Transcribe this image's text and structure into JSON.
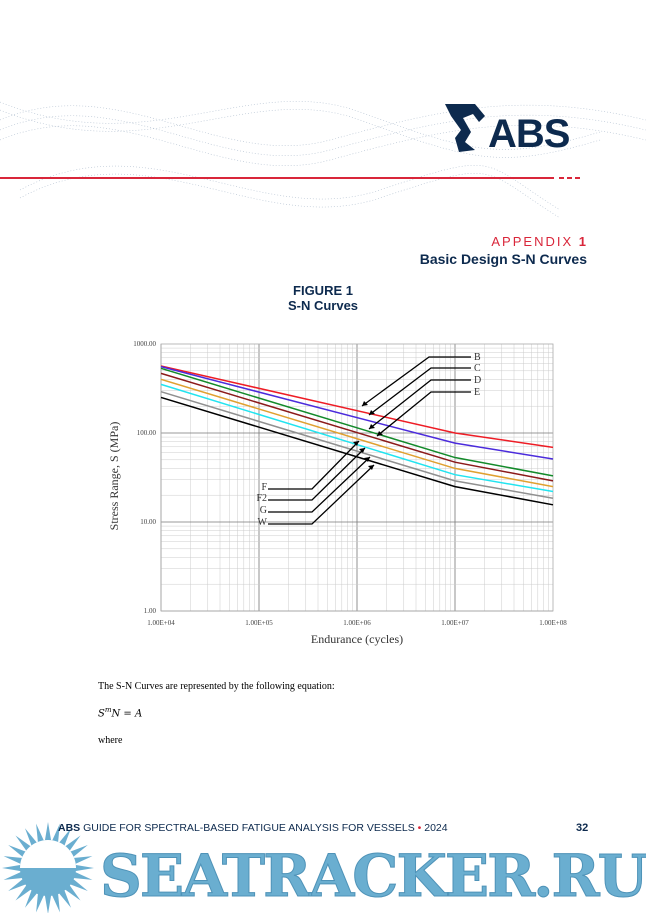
{
  "header": {
    "logo_text": "ABS",
    "appendix_label": "APPENDIX",
    "appendix_number": "1",
    "appendix_title": "Basic Design S-N Curves",
    "accent_color": "#d9263a",
    "brand_color": "#0d2a4e"
  },
  "figure": {
    "number": "FIGURE 1",
    "caption": "S-N Curves"
  },
  "chart_data": {
    "type": "line",
    "xlabel": "Endurance (cycles)",
    "ylabel": "Stress Range, S (MPa)",
    "xscale": "log",
    "yscale": "log",
    "xlim": [
      10000,
      100000000
    ],
    "ylim": [
      1,
      1000
    ],
    "grid": true,
    "x_tick_labels": [
      "1.00E+04",
      "1.00E+05",
      "1.00E+06",
      "1.00E+07",
      "1.00E+08"
    ],
    "y_tick_labels": [
      "1.00",
      "10.00",
      "100.00",
      "1000.00"
    ],
    "x": [
      10000,
      10000000,
      100000000
    ],
    "series": [
      {
        "name": "B",
        "color": "#ee1c25",
        "values": [
          566,
          100,
          69
        ]
      },
      {
        "name": "C",
        "color": "#4b2bdc",
        "values": [
          557,
          77,
          51
        ]
      },
      {
        "name": "D",
        "color": "#138a2a",
        "values": [
          533,
          53,
          33
        ]
      },
      {
        "name": "E",
        "color": "#8b1a1a",
        "values": [
          468,
          47,
          29
        ]
      },
      {
        "name": "F",
        "color": "#e0a030",
        "values": [
          401,
          40,
          25
        ]
      },
      {
        "name": "F2",
        "color": "#22e4f0",
        "values": [
          352,
          34,
          22
        ]
      },
      {
        "name": "G",
        "color": "#909090",
        "values": [
          291,
          29,
          18.5
        ]
      },
      {
        "name": "W",
        "color": "#000000",
        "values": [
          251,
          25,
          15.6
        ]
      }
    ]
  },
  "text": {
    "intro": "The S-N Curves are represented by the following equation:",
    "eq_s": "S",
    "eq_m": "m",
    "eq_rest": "N = A",
    "where": "where"
  },
  "footer": {
    "brand": "ABS",
    "title": "GUIDE FOR SPECTRAL-BASED FATIGUE ANALYSIS FOR VESSELS",
    "separator": "•",
    "year": "2024",
    "page": "32"
  },
  "watermark": {
    "text": "SEATRACKER.RU",
    "color": "#6aaed0"
  }
}
